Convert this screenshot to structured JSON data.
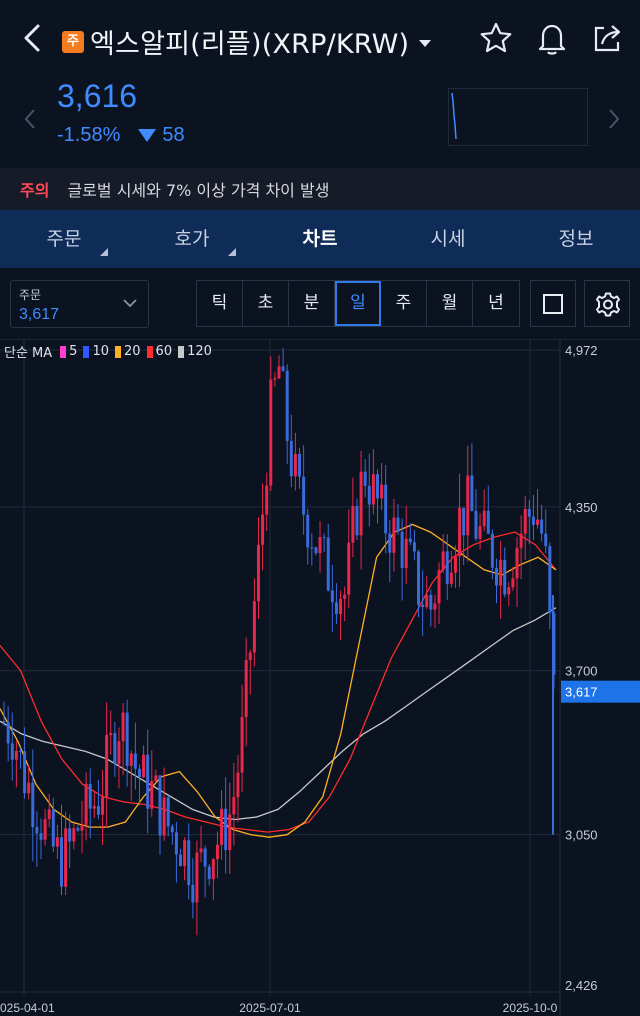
{
  "header": {
    "badge": "주",
    "title": "엑스알피(리플)(XRP/KRW)"
  },
  "price": {
    "current": "3,616",
    "change_pct": "-1.58%",
    "change_abs": "58"
  },
  "warning": {
    "label": "주의",
    "text": "글로벌 시세와 7% 이상 가격 차이 발생"
  },
  "tabs": [
    {
      "label": "주문"
    },
    {
      "label": "호가"
    },
    {
      "label": "차트"
    },
    {
      "label": "시세"
    },
    {
      "label": "정보"
    }
  ],
  "toolbar": {
    "order_label": "주문",
    "order_value": "3,617",
    "periods": [
      "틱",
      "초",
      "분",
      "일",
      "주",
      "월",
      "년"
    ],
    "active_period": "일"
  },
  "colors": {
    "background": "#0b1220",
    "accent_blue": "#3f8cff",
    "tab_bar": "#0f2b57",
    "up": "#e8274b",
    "down": "#3a6bdb",
    "warning": "#ff4a5a"
  },
  "chart_data": {
    "type": "candlestick",
    "indicator_label": "단순 MA",
    "ma_legend": [
      {
        "period": "5",
        "color": "#ff3fd0"
      },
      {
        "period": "10",
        "color": "#2f59ff"
      },
      {
        "period": "20",
        "color": "#ffb020"
      },
      {
        "period": "60",
        "color": "#ff2d2d"
      },
      {
        "period": "120",
        "color": "#c8c8c8"
      }
    ],
    "y_ticks": [
      "4,972",
      "4,350",
      "3,700",
      "3,050",
      "2,426"
    ],
    "y_range": [
      2426,
      4972
    ],
    "current_price_label": "3,617",
    "current_price": 3617,
    "x_ticks": [
      "2025-04-01",
      "2025-07-01",
      "2025-10-0"
    ],
    "price_path": [
      3500,
      3450,
      3300,
      3200,
      3100,
      3000,
      2950,
      3000,
      3100,
      3150,
      3200,
      3350,
      3500,
      3450,
      3300,
      3250,
      3200,
      3100,
      3050,
      3000,
      2900,
      2950,
      3000,
      3050,
      3150,
      3400,
      3800,
      4200,
      4700,
      4900,
      4600,
      4400,
      4300,
      4200,
      4100,
      4050,
      4000,
      4300,
      4500,
      4400,
      4300,
      4250,
      4200,
      4100,
      4000,
      3950,
      4100,
      4200,
      4300,
      4350,
      4250,
      4200,
      4150,
      4100,
      4200,
      4300,
      4350,
      4200,
      3617
    ],
    "ma_paths": {
      "ma20": [
        3550,
        3420,
        3250,
        3150,
        3100,
        3080,
        3080,
        3100,
        3200,
        3280,
        3300,
        3220,
        3120,
        3070,
        3050,
        3040,
        3050,
        3100,
        3200,
        3450,
        3800,
        4150,
        4250,
        4280,
        4250,
        4200,
        4150,
        4100,
        4080,
        4120,
        4150,
        4100
      ],
      "ma60": [
        3800,
        3700,
        3500,
        3350,
        3250,
        3200,
        3180,
        3170,
        3150,
        3120,
        3100,
        3080,
        3070,
        3060,
        3070,
        3100,
        3200,
        3350,
        3550,
        3750,
        3900,
        4050,
        4150,
        4200,
        4230,
        4250,
        4200,
        4100
      ],
      "ma120": [
        3500,
        3450,
        3420,
        3400,
        3380,
        3350,
        3300,
        3250,
        3200,
        3150,
        3120,
        3110,
        3120,
        3150,
        3220,
        3300,
        3380,
        3450,
        3500,
        3560,
        3620,
        3680,
        3740,
        3800,
        3860,
        3900,
        3950
      ]
    }
  }
}
